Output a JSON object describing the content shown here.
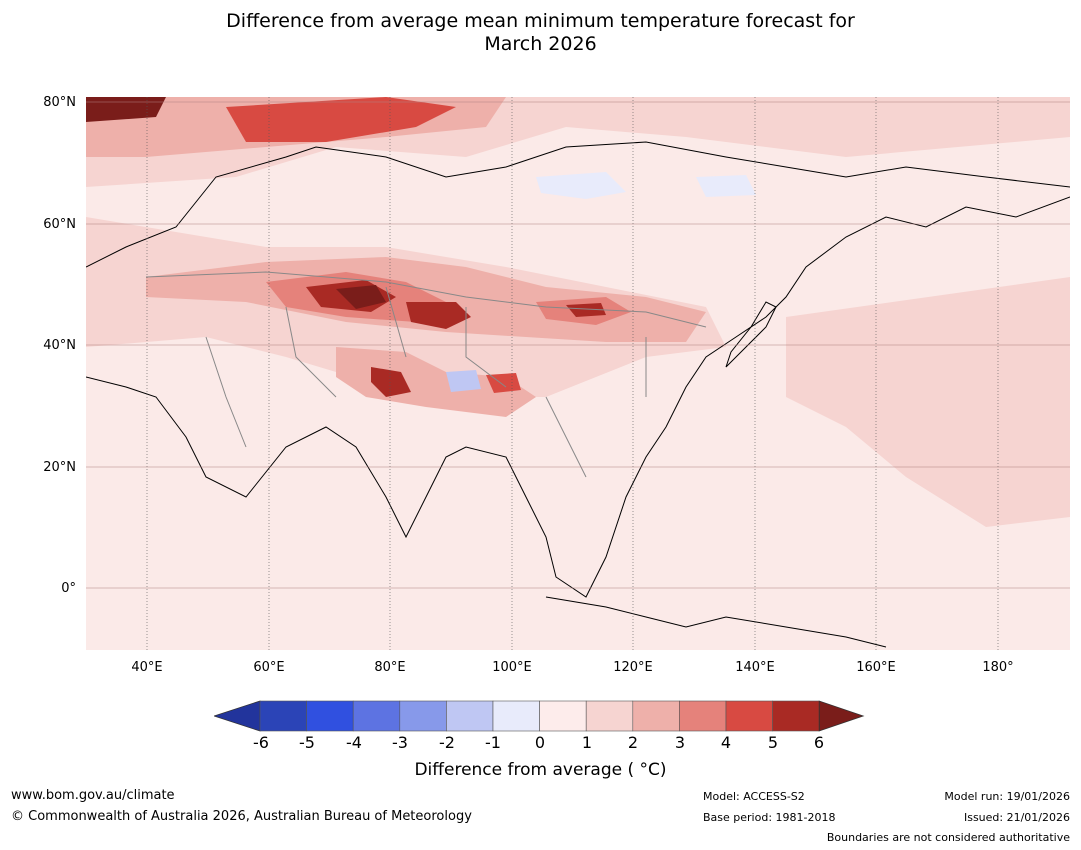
{
  "title_line1": "Difference from average mean minimum temperature forecast for",
  "title_line2": "March 2026",
  "lat_labels": [
    "80°N",
    "60°N",
    "40°N",
    "20°N",
    "0°"
  ],
  "lon_labels": [
    "40°E",
    "60°E",
    "80°E",
    "100°E",
    "120°E",
    "140°E",
    "160°E",
    "180°"
  ],
  "colorbar": {
    "ticks": [
      "-6",
      "-5",
      "-4",
      "-3",
      "-2",
      "-1",
      "0",
      "1",
      "2",
      "3",
      "4",
      "5",
      "6"
    ],
    "colors": [
      "#22349c",
      "#2b44b7",
      "#3050e0",
      "#5d73e2",
      "#8799ea",
      "#bfc7f3",
      "#e8ebfb",
      "#fdeceb",
      "#f6d4d1",
      "#eeb0aa",
      "#e5827b",
      "#d84a42",
      "#a92a24",
      "#7a1d1a"
    ],
    "title": "Difference from average ( °C)"
  },
  "footer": {
    "website": "www.bom.gov.au/climate",
    "copyright": "© Commonwealth of Australia 2026, Australian Bureau of Meteorology",
    "model": "Model: ACCESS-S2",
    "base_period": "Base period: 1981-2018",
    "model_run": "Model run: 19/01/2026",
    "issued": "Issued: 21/01/2026",
    "boundaries_note": "Boundaries are not considered authoritative"
  }
}
